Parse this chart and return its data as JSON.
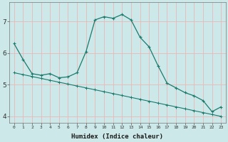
{
  "xlabel": "Humidex (Indice chaleur)",
  "x": [
    0,
    1,
    2,
    3,
    4,
    5,
    6,
    7,
    8,
    9,
    10,
    11,
    12,
    13,
    14,
    15,
    16,
    17,
    18,
    19,
    20,
    21,
    22,
    23
  ],
  "line1_y": [
    6.3,
    5.8,
    5.35,
    5.3,
    5.35,
    5.22,
    5.25,
    5.38,
    6.05,
    7.05,
    7.15,
    7.1,
    7.22,
    7.05,
    6.5,
    6.2,
    5.6,
    5.05,
    4.9,
    4.75,
    4.65,
    4.5,
    4.15,
    4.3
  ],
  "line2_y": [
    5.38,
    5.32,
    5.26,
    5.2,
    5.14,
    5.08,
    5.02,
    4.96,
    4.9,
    4.84,
    4.78,
    4.72,
    4.66,
    4.6,
    4.54,
    4.48,
    4.42,
    4.36,
    4.3,
    4.24,
    4.18,
    4.12,
    4.06,
    4.0
  ],
  "line_color": "#1a7a6e",
  "bg_color": "#cce8e8",
  "grid_color": "#e8b8b8",
  "ylim": [
    3.8,
    7.6
  ],
  "yticks": [
    4,
    5,
    6,
    7
  ],
  "xlim": [
    -0.5,
    23.5
  ]
}
